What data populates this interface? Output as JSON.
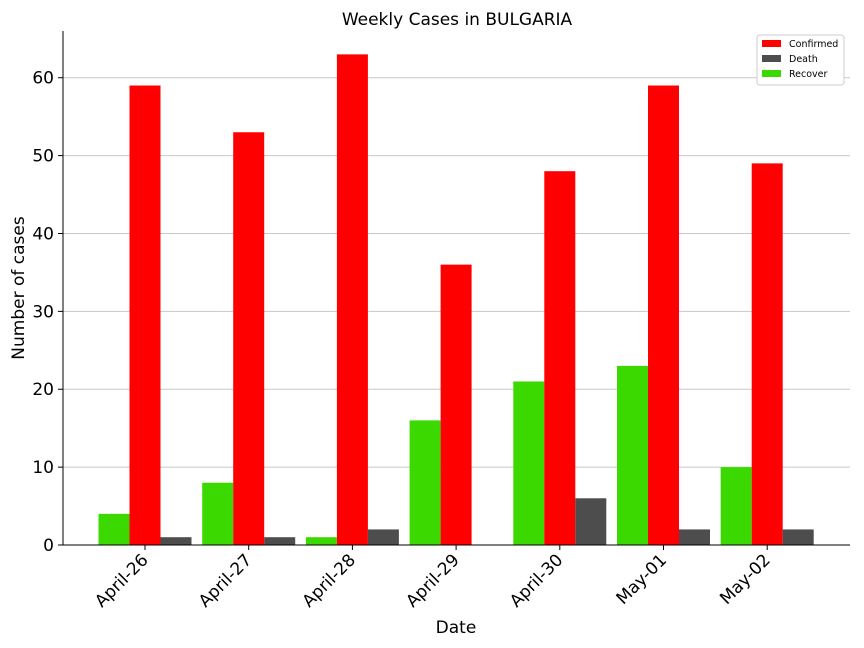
{
  "chart_data": {
    "type": "bar",
    "title": "Weekly Cases in BULGARIA",
    "xlabel": "Date",
    "ylabel": "Number of cases",
    "categories": [
      "April-26",
      "April-27",
      "April-28",
      "April-29",
      "April-30",
      "May-01",
      "May-02"
    ],
    "series": [
      {
        "name": "Recover",
        "color": "#3cd900",
        "values": [
          4,
          8,
          1,
          16,
          21,
          23,
          10
        ]
      },
      {
        "name": "Confirmed",
        "color": "#ff0000",
        "values": [
          59,
          53,
          63,
          36,
          48,
          59,
          49
        ]
      },
      {
        "name": "Death",
        "color": "#4d4d4d",
        "values": [
          1,
          1,
          2,
          0,
          6,
          2,
          2
        ]
      }
    ],
    "legend_order": [
      "Confirmed",
      "Death",
      "Recover"
    ],
    "legend_position": "top-right",
    "ylim": [
      0,
      66
    ],
    "yticks": [
      0,
      10,
      20,
      30,
      40,
      50,
      60
    ],
    "grid": "horizontal"
  }
}
